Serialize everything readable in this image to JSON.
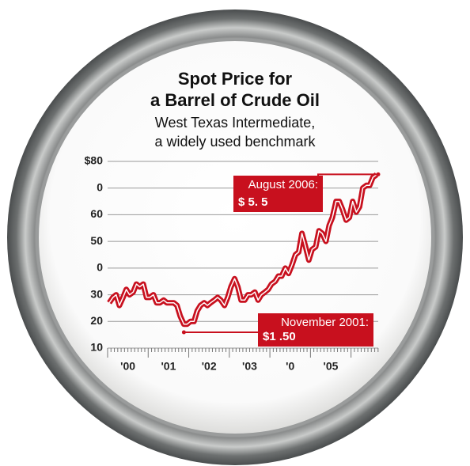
{
  "chart_data": {
    "type": "line",
    "title": [
      "Spot Price for",
      "a Barrel of Crude Oil"
    ],
    "subtitle": [
      "West Texas Intermediate,",
      "a widely used benchmark"
    ],
    "x": [
      2000.04,
      2000.13,
      2000.21,
      2000.29,
      2000.38,
      2000.46,
      2000.54,
      2000.63,
      2000.71,
      2000.79,
      2000.88,
      2000.96,
      2001.04,
      2001.13,
      2001.21,
      2001.29,
      2001.38,
      2001.46,
      2001.54,
      2001.63,
      2001.71,
      2001.79,
      2001.88,
      2001.96,
      2002.04,
      2002.13,
      2002.21,
      2002.29,
      2002.38,
      2002.46,
      2002.54,
      2002.63,
      2002.71,
      2002.79,
      2002.88,
      2002.96,
      2003.04,
      2003.13,
      2003.21,
      2003.29,
      2003.38,
      2003.46,
      2003.54,
      2003.63,
      2003.71,
      2003.79,
      2003.88,
      2003.96,
      2004.04,
      2004.13,
      2004.21,
      2004.29,
      2004.38,
      2004.46,
      2004.54,
      2004.63,
      2004.71,
      2004.79,
      2004.88,
      2004.96,
      2005.04,
      2005.13,
      2005.21,
      2005.29,
      2005.38,
      2005.46,
      2005.54,
      2005.63,
      2005.71,
      2005.79,
      2005.88,
      2005.96,
      2006.04,
      2006.13,
      2006.21,
      2006.29,
      2006.38,
      2006.46,
      2006.54,
      2006.63
    ],
    "series": [
      {
        "color": "#c8101e",
        "values": [
          27,
          29,
          30,
          26,
          29,
          32,
          30,
          31,
          34,
          33,
          34,
          29,
          29,
          30,
          27,
          27,
          28,
          27,
          27,
          27,
          26,
          22,
          19,
          19,
          20,
          20,
          24,
          26,
          27,
          26,
          27,
          28,
          29,
          28,
          26,
          29,
          33,
          36,
          33,
          28,
          28,
          30,
          30,
          31,
          28,
          30,
          31,
          32,
          34,
          35,
          37,
          37,
          40,
          38,
          41,
          45,
          46,
          53,
          48,
          43,
          47,
          48,
          54,
          53,
          50,
          56,
          59,
          65,
          65,
          62,
          58,
          59,
          65,
          61,
          63,
          70,
          71,
          71,
          74,
          75
        ]
      }
    ],
    "xlim": [
      2000,
      2006.67
    ],
    "xticks": [
      {
        "value": 2000.5,
        "label": "'00"
      },
      {
        "value": 2001.5,
        "label": "'01"
      },
      {
        "value": 2002.5,
        "label": "'02"
      },
      {
        "value": 2003.5,
        "label": "'03"
      },
      {
        "value": 2004.5,
        "label": "'0"
      },
      {
        "value": 2005.5,
        "label": "'05"
      }
    ],
    "ylim": [
      10,
      80
    ],
    "yticks": [
      {
        "value": 80,
        "label": "$80"
      },
      {
        "value": 70,
        "label": "0"
      },
      60,
      50,
      {
        "value": 40,
        "label": "0"
      },
      30,
      20,
      10
    ],
    "grid": true,
    "annotations": [
      {
        "text": "August 2006:",
        "value_text": "$ 5. 5",
        "x": 2006.67,
        "y": 75.15
      },
      {
        "text": "November 2001:",
        "value_text": "$1 .50",
        "x": 2001.88,
        "y": 17.5
      }
    ]
  }
}
